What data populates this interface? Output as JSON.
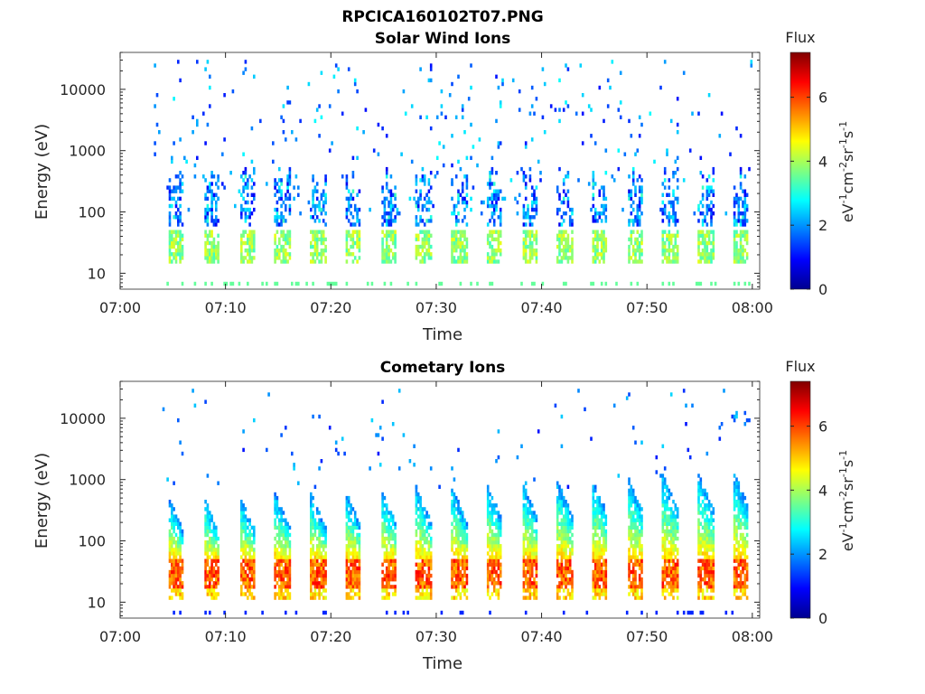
{
  "figure": {
    "title": "RPCICA160102T07.PNG"
  },
  "colorbar": {
    "title": "Flux",
    "unit_base": "eV",
    "unit_exp1": "-1",
    "unit_cm": "cm",
    "unit_exp2": "-2",
    "unit_sr": "sr",
    "unit_exp3": "-1",
    "unit_s": "s",
    "unit_exp4": "-1",
    "ticks": [
      "0",
      "2",
      "4",
      "6"
    ],
    "tick_values": [
      0,
      2,
      4,
      6
    ],
    "range": [
      0,
      7.4
    ],
    "colormap": "jet"
  },
  "chart_data": [
    {
      "type": "heatmap",
      "title": "Solar Wind Ions",
      "xlabel": "Time",
      "ylabel": "Energy (eV)",
      "x_ticks": [
        "07:00",
        "07:10",
        "07:20",
        "07:30",
        "07:40",
        "07:50",
        "08:00"
      ],
      "x_tick_minutes": [
        0,
        10,
        20,
        30,
        40,
        50,
        60
      ],
      "xlim_minutes": [
        0,
        60.7
      ],
      "y_scale": "log",
      "y_ticks": [
        "10",
        "100",
        "1000",
        "10000"
      ],
      "y_tick_values": [
        10,
        100,
        1000,
        10000
      ],
      "ylim": [
        5.5,
        40000
      ],
      "bursts_start_minute": 4.5,
      "bursts_period_minutes": 3.35,
      "bursts_count": 17,
      "data_start_minute": 3.0,
      "data_end_minute": 60.0,
      "low_band_ev": [
        15,
        45
      ],
      "low_band_flux": 3.8,
      "vertical_streaks_ev": [
        100,
        500
      ],
      "streak_flux_range": [
        0.8,
        2.5
      ],
      "scatter_flux_range": [
        1.0,
        2.8
      ]
    },
    {
      "type": "heatmap",
      "title": "Cometary Ions",
      "xlabel": "Time",
      "ylabel": "Energy (eV)",
      "x_ticks": [
        "07:00",
        "07:10",
        "07:20",
        "07:30",
        "07:40",
        "07:50",
        "08:00"
      ],
      "x_tick_minutes": [
        0,
        10,
        20,
        30,
        40,
        50,
        60
      ],
      "xlim_minutes": [
        0,
        60.7
      ],
      "y_scale": "log",
      "y_ticks": [
        "10",
        "100",
        "1000",
        "10000"
      ],
      "y_tick_values": [
        10,
        100,
        1000,
        10000
      ],
      "ylim": [
        5.5,
        40000
      ],
      "bursts_start_minute": 4.5,
      "bursts_period_minutes": 3.35,
      "bursts_count": 17,
      "data_start_minute": 3.0,
      "data_end_minute": 60.0,
      "core_band_ev": [
        18,
        45
      ],
      "core_flux": 6.3,
      "plume_top_ev": [
        500,
        1300
      ],
      "plume_flux_range": [
        2.0,
        5.0
      ],
      "scatter_flux_range": [
        1.0,
        2.5
      ]
    }
  ]
}
